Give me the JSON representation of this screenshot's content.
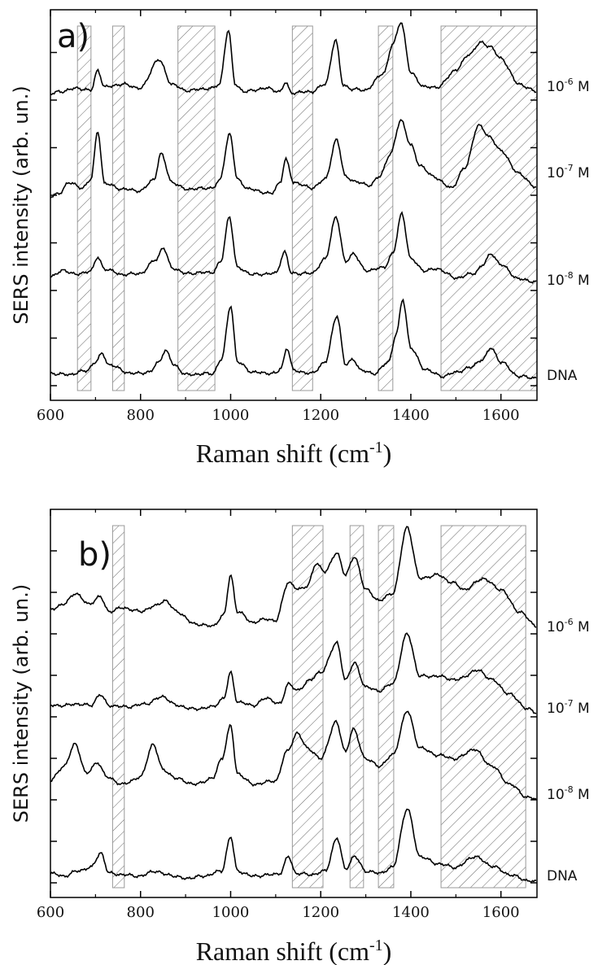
{
  "chart_data": [
    {
      "type": "line",
      "panel_label": "a)",
      "xlabel": "Raman shift (cm-1)",
      "ylabel": "SERS intensity (arb. un.)",
      "xlim": [
        600,
        1680
      ],
      "xticks": [
        600,
        800,
        1000,
        1200,
        1400,
        1600
      ],
      "shaded_regions": [
        [
          660,
          690
        ],
        [
          738,
          764
        ],
        [
          883,
          965
        ],
        [
          1137,
          1182
        ],
        [
          1328,
          1360
        ],
        [
          1467,
          1680
        ]
      ],
      "series": [
        {
          "name": "10-6 M",
          "x": [
            600,
            620,
            660,
            690,
            705,
            720,
            760,
            800,
            840,
            870,
            900,
            960,
            975,
            995,
            1010,
            1030,
            1080,
            1110,
            1122,
            1135,
            1180,
            1210,
            1233,
            1250,
            1270,
            1300,
            1340,
            1360,
            1378,
            1400,
            1430,
            1460,
            1500,
            1530,
            1555,
            1575,
            1600,
            1640,
            1680
          ],
          "y": [
            0.18,
            0.22,
            0.28,
            0.24,
            0.6,
            0.3,
            0.35,
            0.28,
            0.78,
            0.35,
            0.24,
            0.28,
            0.35,
            1.3,
            0.35,
            0.22,
            0.28,
            0.22,
            0.38,
            0.2,
            0.22,
            0.35,
            1.12,
            0.34,
            0.26,
            0.25,
            0.55,
            1.05,
            1.45,
            0.55,
            0.3,
            0.3,
            0.6,
            0.88,
            1.08,
            1.02,
            0.8,
            0.35,
            0.22
          ]
        },
        {
          "name": "10-7 M",
          "x": [
            600,
            620,
            640,
            670,
            690,
            705,
            720,
            760,
            800,
            830,
            845,
            870,
            900,
            960,
            975,
            998,
            1015,
            1040,
            1090,
            1110,
            1122,
            1140,
            1180,
            1210,
            1235,
            1255,
            1280,
            1310,
            1330,
            1355,
            1378,
            1400,
            1420,
            1450,
            1490,
            1520,
            1550,
            1575,
            1600,
            1640,
            1680
          ],
          "y": [
            0.05,
            0.1,
            0.3,
            0.2,
            0.35,
            1.2,
            0.28,
            0.18,
            0.15,
            0.35,
            0.8,
            0.3,
            0.18,
            0.2,
            0.32,
            1.15,
            0.35,
            0.18,
            0.1,
            0.3,
            0.7,
            0.3,
            0.2,
            0.35,
            1.05,
            0.4,
            0.3,
            0.25,
            0.4,
            0.8,
            1.4,
            0.95,
            0.6,
            0.4,
            0.2,
            0.55,
            1.3,
            1.1,
            0.85,
            0.45,
            0.2
          ]
        },
        {
          "name": "10-8 M",
          "x": [
            600,
            630,
            660,
            690,
            705,
            720,
            760,
            800,
            835,
            850,
            870,
            900,
            960,
            978,
            997,
            1015,
            1050,
            1100,
            1120,
            1135,
            1180,
            1210,
            1234,
            1255,
            1272,
            1300,
            1340,
            1360,
            1380,
            1400,
            1430,
            1460,
            1500,
            1540,
            1560,
            1578,
            1600,
            1640,
            1680
          ],
          "y": [
            0.15,
            0.25,
            0.18,
            0.25,
            0.48,
            0.28,
            0.18,
            0.2,
            0.45,
            0.65,
            0.3,
            0.2,
            0.22,
            0.4,
            1.2,
            0.3,
            0.18,
            0.2,
            0.58,
            0.2,
            0.2,
            0.45,
            1.2,
            0.4,
            0.55,
            0.25,
            0.3,
            0.55,
            1.25,
            0.45,
            0.25,
            0.28,
            0.12,
            0.2,
            0.35,
            0.55,
            0.35,
            0.1,
            0.05
          ]
        },
        {
          "name": "DNA",
          "x": [
            600,
            640,
            680,
            700,
            715,
            730,
            780,
            820,
            840,
            855,
            875,
            900,
            960,
            980,
            1000,
            1015,
            1050,
            1100,
            1112,
            1125,
            1140,
            1180,
            1210,
            1236,
            1255,
            1272,
            1290,
            1320,
            1350,
            1368,
            1382,
            1400,
            1430,
            1470,
            1500,
            1530,
            1560,
            1578,
            1600,
            1640,
            1680
          ],
          "y": [
            0.1,
            0.08,
            0.15,
            0.3,
            0.45,
            0.25,
            0.1,
            0.12,
            0.3,
            0.5,
            0.25,
            0.08,
            0.1,
            0.35,
            1.3,
            0.3,
            0.12,
            0.1,
            0.2,
            0.55,
            0.15,
            0.1,
            0.3,
            1.12,
            0.25,
            0.35,
            0.15,
            0.1,
            0.3,
            0.8,
            1.4,
            0.55,
            0.18,
            0.05,
            0.12,
            0.2,
            0.35,
            0.55,
            0.3,
            0.05,
            0.02
          ]
        }
      ]
    },
    {
      "type": "line",
      "panel_label": "b)",
      "xlabel": "Raman shift (cm-1)",
      "ylabel": "SERS intensity (arb. un.)",
      "xlim": [
        600,
        1680
      ],
      "xticks": [
        600,
        800,
        1000,
        1200,
        1400,
        1600
      ],
      "shaded_regions": [
        [
          738,
          764
        ],
        [
          1137,
          1205
        ],
        [
          1265,
          1295
        ],
        [
          1328,
          1362
        ],
        [
          1467,
          1655
        ]
      ],
      "series": [
        {
          "name": "10-6 M",
          "x": [
            600,
            630,
            655,
            685,
            710,
            730,
            760,
            800,
            830,
            855,
            880,
            920,
            960,
            985,
            1000,
            1015,
            1050,
            1080,
            1100,
            1128,
            1150,
            1170,
            1190,
            1210,
            1236,
            1255,
            1275,
            1300,
            1330,
            1360,
            1392,
            1420,
            1460,
            1490,
            1520,
            1560,
            1600,
            1640,
            1680
          ],
          "y": [
            0.28,
            0.35,
            0.5,
            0.35,
            0.45,
            0.25,
            0.3,
            0.25,
            0.32,
            0.4,
            0.25,
            0.08,
            0.05,
            0.2,
            0.75,
            0.25,
            0.1,
            0.15,
            0.12,
            0.65,
            0.55,
            0.6,
            0.9,
            0.8,
            1.05,
            0.75,
            1.0,
            0.55,
            0.4,
            0.5,
            1.4,
            0.7,
            0.75,
            0.65,
            0.55,
            0.7,
            0.55,
            0.25,
            0.05
          ]
        },
        {
          "name": "10-7 M",
          "x": [
            600,
            630,
            660,
            690,
            710,
            730,
            770,
            810,
            850,
            880,
            920,
            960,
            985,
            1000,
            1015,
            1050,
            1080,
            1110,
            1128,
            1150,
            1175,
            1200,
            1236,
            1255,
            1275,
            1300,
            1330,
            1360,
            1392,
            1420,
            1460,
            1500,
            1550,
            1580,
            1620,
            1660,
            1680
          ],
          "y": [
            0.1,
            0.1,
            0.12,
            0.1,
            0.25,
            0.1,
            0.08,
            0.12,
            0.22,
            0.1,
            0.05,
            0.08,
            0.2,
            0.55,
            0.15,
            0.1,
            0.2,
            0.12,
            0.4,
            0.3,
            0.45,
            0.55,
            0.95,
            0.45,
            0.68,
            0.35,
            0.3,
            0.4,
            1.08,
            0.5,
            0.5,
            0.45,
            0.58,
            0.45,
            0.25,
            0.05,
            0.0
          ]
        },
        {
          "name": "10-8 M",
          "x": [
            600,
            630,
            655,
            680,
            705,
            725,
            760,
            800,
            828,
            850,
            880,
            920,
            960,
            980,
            1000,
            1015,
            1050,
            1100,
            1125,
            1148,
            1170,
            1200,
            1234,
            1255,
            1272,
            1300,
            1330,
            1360,
            1392,
            1420,
            1460,
            1500,
            1540,
            1580,
            1620,
            1660,
            1680
          ],
          "y": [
            0.25,
            0.45,
            0.75,
            0.35,
            0.5,
            0.3,
            0.2,
            0.3,
            0.75,
            0.4,
            0.28,
            0.2,
            0.28,
            0.55,
            1.0,
            0.35,
            0.2,
            0.25,
            0.65,
            0.9,
            0.7,
            0.55,
            1.05,
            0.65,
            0.95,
            0.55,
            0.45,
            0.6,
            1.2,
            0.7,
            0.6,
            0.55,
            0.68,
            0.45,
            0.2,
            0.02,
            0.0
          ]
        },
        {
          "name": "DNA",
          "x": [
            600,
            630,
            660,
            690,
            712,
            730,
            760,
            800,
            830,
            860,
            900,
            940,
            980,
            1000,
            1015,
            1050,
            1090,
            1110,
            1128,
            1145,
            1180,
            1210,
            1236,
            1255,
            1275,
            1300,
            1330,
            1360,
            1392,
            1420,
            1460,
            1500,
            1542,
            1580,
            1620,
            1660,
            1680
          ],
          "y": [
            0.12,
            0.08,
            0.15,
            0.2,
            0.4,
            0.12,
            0.1,
            0.08,
            0.15,
            0.1,
            0.05,
            0.08,
            0.15,
            0.62,
            0.15,
            0.08,
            0.1,
            0.12,
            0.35,
            0.12,
            0.1,
            0.15,
            0.6,
            0.18,
            0.35,
            0.15,
            0.12,
            0.2,
            1.0,
            0.35,
            0.25,
            0.2,
            0.35,
            0.22,
            0.1,
            0.02,
            0.0
          ]
        }
      ]
    }
  ]
}
